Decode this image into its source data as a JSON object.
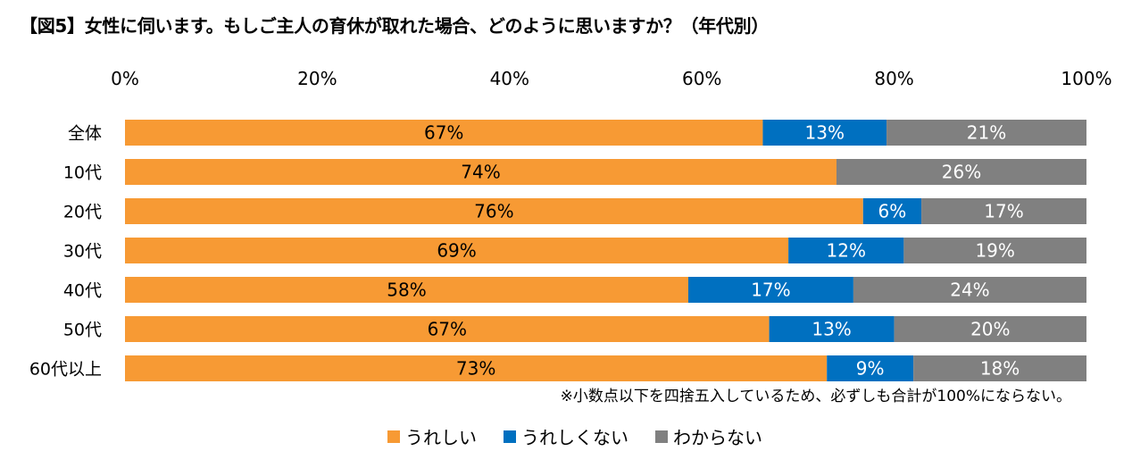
{
  "chart_data": {
    "type": "bar",
    "orientation": "horizontal",
    "stacked": true,
    "title": "【図5】女性に伺います。もしご主人の育休が取れた場合、どのように思いますか？（年代別）",
    "categories": [
      "全体",
      "10代",
      "20代",
      "30代",
      "40代",
      "50代",
      "60代以上"
    ],
    "series": [
      {
        "name": "うれしい",
        "color": "#F79A34",
        "label_color": "#000000",
        "values": [
          67,
          74,
          76,
          69,
          58,
          67,
          73
        ]
      },
      {
        "name": "うれしくない",
        "color": "#0070C0",
        "label_color": "#ffffff",
        "values": [
          13,
          0,
          6,
          12,
          17,
          13,
          9
        ]
      },
      {
        "name": "わからない",
        "color": "#808080",
        "label_color": "#ffffff",
        "values": [
          21,
          26,
          17,
          19,
          24,
          20,
          18
        ]
      }
    ],
    "xlim": [
      0,
      100
    ],
    "x_ticks": [
      "0%",
      "20%",
      "40%",
      "60%",
      "80%",
      "100%"
    ],
    "x_tick_values": [
      0,
      20,
      40,
      60,
      80,
      100
    ],
    "x_axis_position": "top",
    "grid": false,
    "legend_position": "bottom",
    "data_label_format": "{v}%",
    "footnote": "※小数点以下を四捨五入しているため、必ずしも合計が100%にならない。"
  }
}
